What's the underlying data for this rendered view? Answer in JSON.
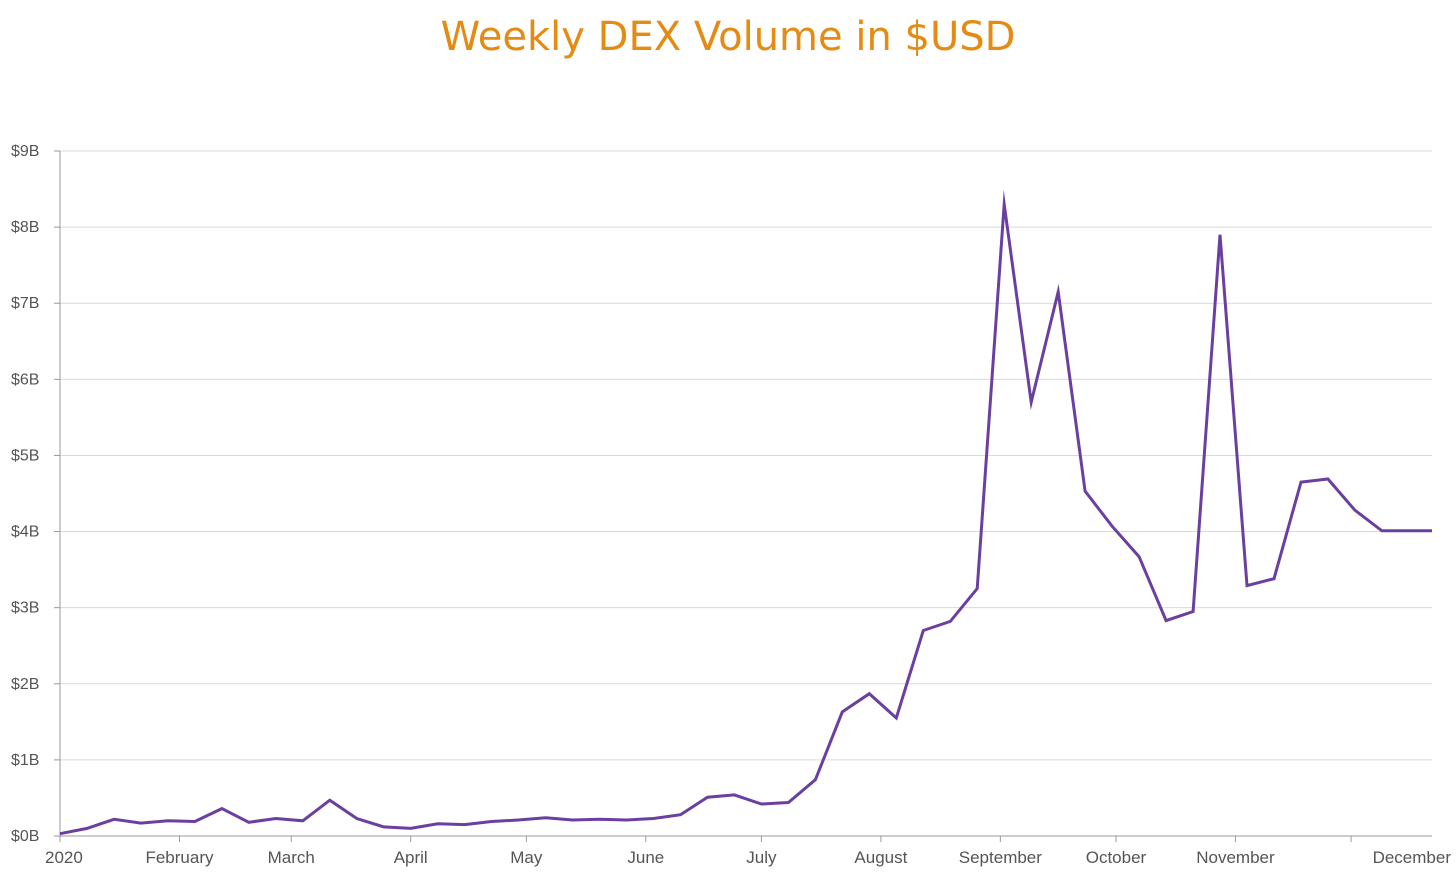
{
  "chart_data": {
    "type": "line",
    "title": "Weekly DEX Volume in $USD",
    "xlabel": "",
    "ylabel": "",
    "ylim": [
      0,
      9
    ],
    "y_unit": "billion USD",
    "grid": true,
    "y_tick_values": [
      0,
      1,
      2,
      3,
      4,
      5,
      6,
      7,
      8,
      9
    ],
    "y_tick_labels": [
      "$0B",
      "$1B",
      "$2B",
      "$3B",
      "$4B",
      "$5B",
      "$6B",
      "$7B",
      "$8B",
      "$9B"
    ],
    "x_tick_labels": [
      "2020",
      "February",
      "March",
      "April",
      "May",
      "June",
      "July",
      "August",
      "September",
      "October",
      "November",
      "December"
    ],
    "x_tick_dates": [
      "2020-01-01",
      "2020-02-01",
      "2020-03-01",
      "2020-04-01",
      "2020-05-01",
      "2020-06-01",
      "2020-07-01",
      "2020-08-01",
      "2020-09-01",
      "2020-10-01",
      "2020-11-01",
      "2020-12-01"
    ],
    "x_range": [
      "2020-01-01",
      "2020-12-22"
    ],
    "series": [
      {
        "color": "#6b3fa0",
        "x": [
          "2020-01-01",
          "2020-01-08",
          "2020-01-15",
          "2020-01-22",
          "2020-01-29",
          "2020-02-05",
          "2020-02-12",
          "2020-02-19",
          "2020-02-26",
          "2020-03-04",
          "2020-03-11",
          "2020-03-18",
          "2020-03-25",
          "2020-04-01",
          "2020-04-08",
          "2020-04-15",
          "2020-04-22",
          "2020-04-29",
          "2020-05-06",
          "2020-05-13",
          "2020-05-20",
          "2020-05-27",
          "2020-06-03",
          "2020-06-10",
          "2020-06-17",
          "2020-06-24",
          "2020-07-01",
          "2020-07-08",
          "2020-07-15",
          "2020-07-22",
          "2020-07-29",
          "2020-08-05",
          "2020-08-12",
          "2020-08-19",
          "2020-08-26",
          "2020-09-02",
          "2020-09-09",
          "2020-09-16",
          "2020-09-23",
          "2020-09-30",
          "2020-10-07",
          "2020-10-14",
          "2020-10-21",
          "2020-10-28",
          "2020-11-04",
          "2020-11-11",
          "2020-11-18",
          "2020-11-25",
          "2020-12-02",
          "2020-12-09",
          "2020-12-16",
          "2020-12-22"
        ],
        "values": [
          0.03,
          0.1,
          0.22,
          0.17,
          0.2,
          0.19,
          0.36,
          0.18,
          0.23,
          0.2,
          0.47,
          0.23,
          0.12,
          0.1,
          0.16,
          0.15,
          0.19,
          0.21,
          0.24,
          0.21,
          0.22,
          0.21,
          0.23,
          0.28,
          0.51,
          0.54,
          0.42,
          0.44,
          0.74,
          1.63,
          1.87,
          1.55,
          2.7,
          2.82,
          3.25,
          8.3,
          5.7,
          7.15,
          4.53,
          4.07,
          3.67,
          2.83,
          2.95,
          7.9,
          3.29,
          3.38,
          4.65,
          4.69,
          4.28,
          4.01,
          4.01,
          4.01
        ]
      }
    ]
  }
}
